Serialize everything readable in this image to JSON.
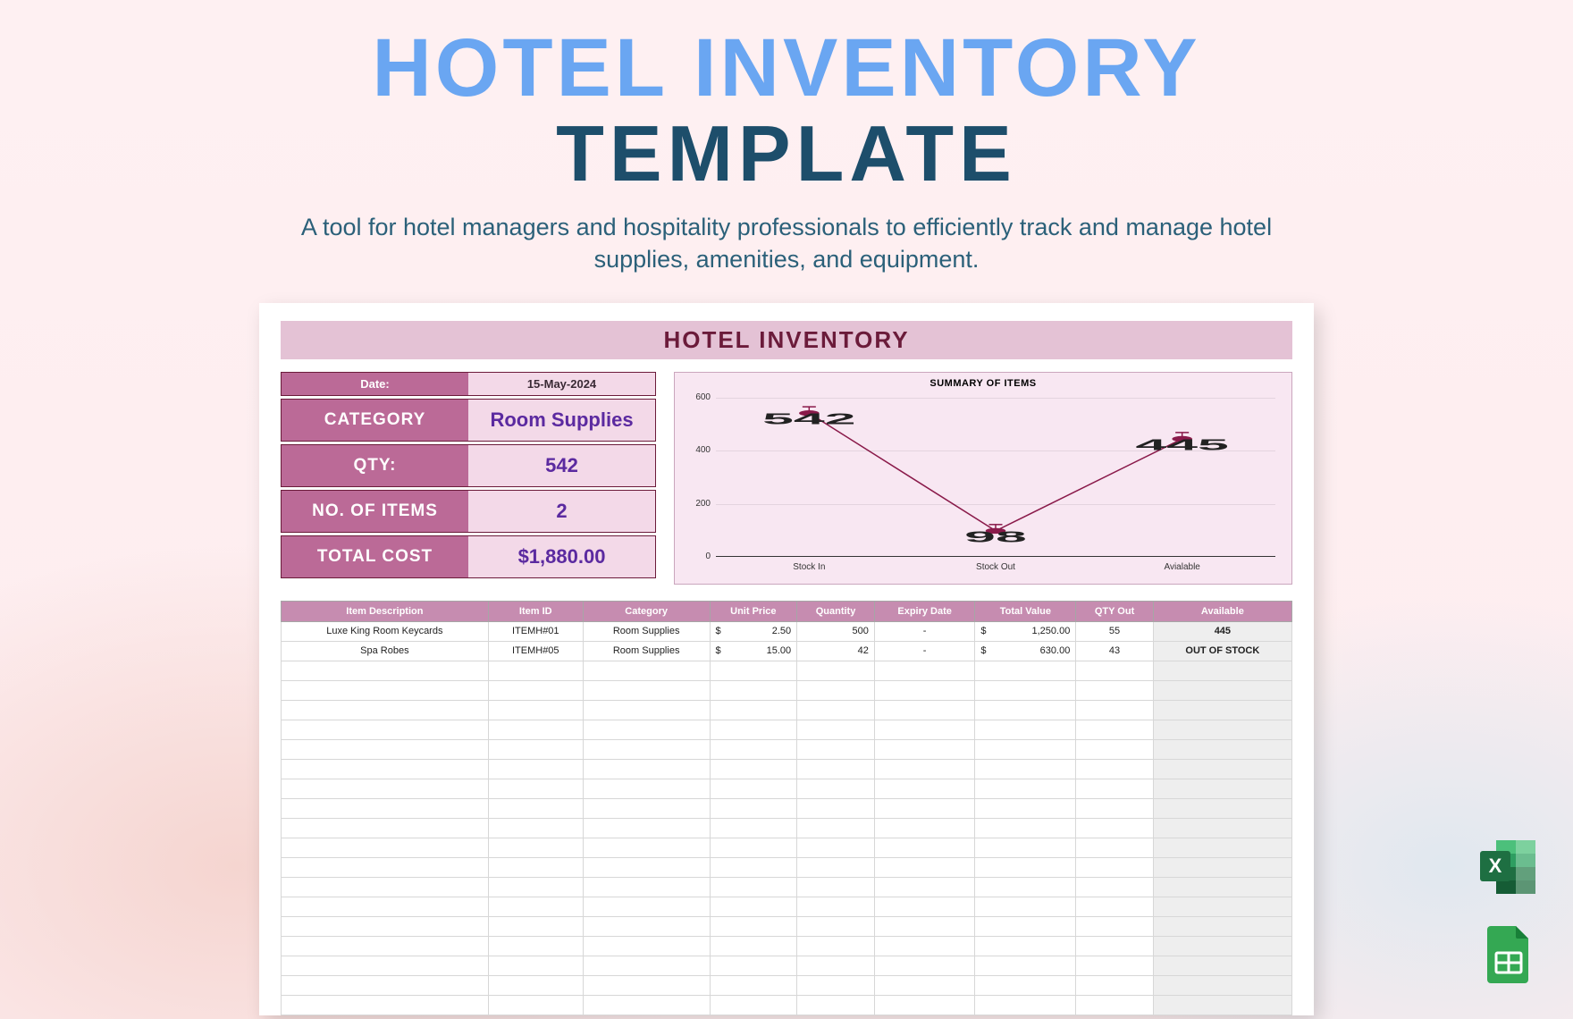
{
  "headline": {
    "line1": "HOTEL INVENTORY",
    "line2": "TEMPLATE"
  },
  "subtitle": "A tool for hotel managers and hospitality professionals to efficiently track and manage hotel supplies, amenities, and equipment.",
  "colors": {
    "headline_top": "#6aa6f2",
    "headline_bottom": "#1d4e6b",
    "banner_bg": "#e4c2d5",
    "banner_fg": "#6b1b3a",
    "kv_label_bg": "#bb6a97",
    "kv_value_bg": "#f3d9e8",
    "kv_value_fg": "#5b2aa0",
    "table_header_bg": "#c68cb0",
    "chart_bg": "#f8e7f2",
    "chart_series": "#8a1a4a"
  },
  "sheet": {
    "banner_title": "HOTEL INVENTORY",
    "date_label": "Date:",
    "date_value": "15-May-2024",
    "kv": [
      {
        "label": "CATEGORY",
        "value": "Room Supplies"
      },
      {
        "label": "QTY:",
        "value": "542"
      },
      {
        "label": "NO. OF ITEMS",
        "value": "2"
      },
      {
        "label": "TOTAL COST",
        "value": "$1,880.00"
      }
    ],
    "chart": {
      "title": "SUMMARY OF ITEMS",
      "type": "line",
      "ylim": [
        0,
        600
      ],
      "ytick_step": 200,
      "yticks": [
        0,
        200,
        400,
        600
      ],
      "categories": [
        "Stock In",
        "Stock Out",
        "Avialable"
      ],
      "values": [
        542,
        98,
        445
      ],
      "series_color": "#8a1a4a",
      "background_color": "#f8e7f2",
      "marker": "circle",
      "marker_size": 4,
      "line_width": 1.5,
      "error_cap": true
    },
    "table": {
      "columns": [
        "Item Description",
        "Item ID",
        "Category",
        "Unit Price",
        "Quantity",
        "Expiry Date",
        "Total Value",
        "QTY Out",
        "Available"
      ],
      "rows": [
        {
          "desc": "Luxe King Room Keycards",
          "id": "ITEMH#01",
          "cat": "Room Supplies",
          "unit": "2.50",
          "qty": "500",
          "exp": "-",
          "total": "1,250.00",
          "out": "55",
          "avail": "445"
        },
        {
          "desc": "Spa Robes",
          "id": "ITEMH#05",
          "cat": "Room Supplies",
          "unit": "15.00",
          "qty": "42",
          "exp": "-",
          "total": "630.00",
          "out": "43",
          "avail": "OUT OF STOCK"
        }
      ],
      "empty_row_count": 18,
      "currency_symbol": "$"
    }
  },
  "format_icons": {
    "excel_label": "X",
    "excel_colors": {
      "dark": "#1e6f42",
      "mid": "#2e9e61",
      "light": "#4cc07b",
      "pale": "#c7ead5"
    },
    "sheets_colors": {
      "dark": "#188038",
      "mid": "#34a853",
      "pale": "#a8dab5"
    }
  }
}
